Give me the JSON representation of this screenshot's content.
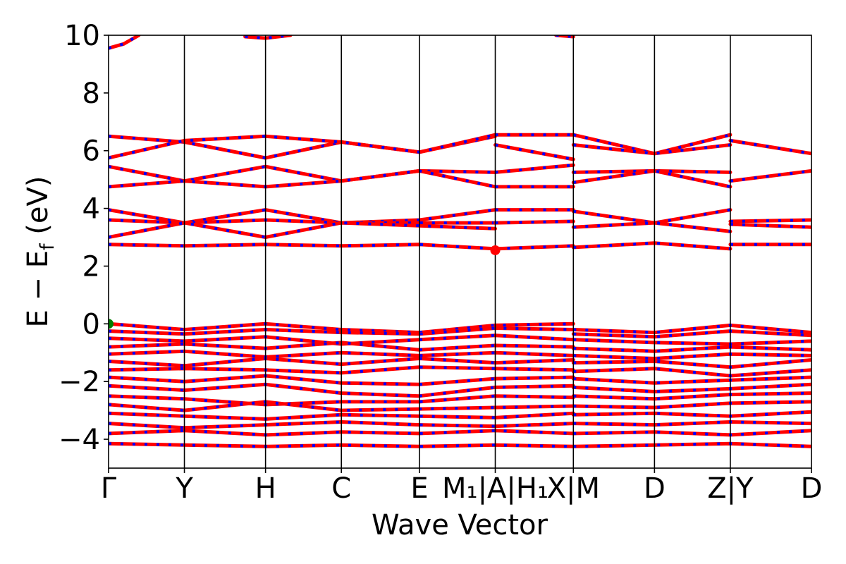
{
  "chart_data": {
    "type": "line",
    "xlabel": "Wave Vector",
    "ylabel": "E − E",
    "ylabel_sub": "f",
    "ylabel_unit": " (eV)",
    "ylim": [
      -5,
      10
    ],
    "yticks": [
      -4,
      -2,
      0,
      2,
      4,
      6,
      8,
      10
    ],
    "ytick_labels": [
      "−4",
      "−2",
      "0",
      "2",
      "4",
      "6",
      "8",
      "10"
    ],
    "xlim": [
      0,
      9.27
    ],
    "kpoints": [
      {
        "x": 0.0,
        "label": "Γ"
      },
      {
        "x": 1.0,
        "label": "Y"
      },
      {
        "x": 2.07,
        "label": "H"
      },
      {
        "x": 3.07,
        "label": "C"
      },
      {
        "x": 4.1,
        "label": "E"
      },
      {
        "x": 5.1,
        "label": "M₁|A|H₁"
      },
      {
        "x": 6.13,
        "label": "X|M"
      },
      {
        "x": 7.2,
        "label": "D"
      },
      {
        "x": 8.2,
        "label": "Z|Y"
      },
      {
        "x": 9.27,
        "label": "D"
      }
    ],
    "discontinuities": [
      5.1,
      6.13,
      8.2
    ],
    "colors": {
      "band_up": "#ff0000",
      "band_down": "#0000ff",
      "vbm_marker": "#008000",
      "cbm_marker": "#ff0000",
      "kpath_line": "#000000"
    },
    "vbm": {
      "x": 0.0,
      "y": 0.0
    },
    "cbm": {
      "x": 5.1,
      "y": 2.55
    },
    "conduction_top_bands": [
      {
        "name": "",
        "x": [
          0.0,
          0.2,
          0.4
        ],
        "y": [
          9.55,
          9.7,
          10.0
        ]
      },
      {
        "name": "",
        "x": [
          1.8,
          2.07,
          2.4
        ],
        "y": [
          9.95,
          9.9,
          10.0
        ]
      },
      {
        "name": "",
        "x": [
          5.9,
          6.13
        ],
        "y": [
          10.0,
          9.95
        ]
      }
    ],
    "bands": [
      {
        "x": [
          0.0,
          1.0,
          2.07,
          3.07,
          4.1,
          5.1
        ],
        "y": [
          6.5,
          6.3,
          5.75,
          6.3,
          5.95,
          6.5
        ]
      },
      {
        "x": [
          0.0,
          1.0,
          2.07,
          3.07,
          4.1,
          5.1
        ],
        "y": [
          5.75,
          6.35,
          6.5,
          6.3,
          5.95,
          6.55
        ]
      },
      {
        "x": [
          0.0,
          1.0,
          2.07,
          3.07,
          4.1,
          5.1
        ],
        "y": [
          5.45,
          4.95,
          5.45,
          4.95,
          5.3,
          5.25
        ]
      },
      {
        "x": [
          0.0,
          1.0,
          2.07,
          3.07,
          4.1,
          5.1
        ],
        "y": [
          4.75,
          4.95,
          4.75,
          4.95,
          5.3,
          4.75
        ]
      },
      {
        "x": [
          0.0,
          1.0,
          2.07,
          3.07,
          4.1,
          5.1
        ],
        "y": [
          3.95,
          3.5,
          3.95,
          3.5,
          3.6,
          3.95
        ]
      },
      {
        "x": [
          0.0,
          1.0,
          2.07,
          3.07,
          4.1,
          5.1
        ],
        "y": [
          3.6,
          3.5,
          3.6,
          3.5,
          3.5,
          3.5
        ]
      },
      {
        "x": [
          0.0,
          1.0,
          2.07,
          3.07,
          4.1,
          5.1
        ],
        "y": [
          3.0,
          3.5,
          3.0,
          3.5,
          3.4,
          3.3
        ]
      },
      {
        "x": [
          0.0,
          1.0,
          2.07,
          3.07,
          4.1,
          5.1
        ],
        "y": [
          2.75,
          2.7,
          2.75,
          2.7,
          2.75,
          2.6
        ]
      },
      {
        "x": [
          5.1,
          6.13
        ],
        "y": [
          6.55,
          6.55
        ]
      },
      {
        "x": [
          5.1,
          6.13
        ],
        "y": [
          6.2,
          5.7
        ]
      },
      {
        "x": [
          5.1,
          6.13
        ],
        "y": [
          5.25,
          5.5
        ]
      },
      {
        "x": [
          5.1,
          6.13
        ],
        "y": [
          4.75,
          4.75
        ]
      },
      {
        "x": [
          5.1,
          6.13
        ],
        "y": [
          3.95,
          3.95
        ]
      },
      {
        "x": [
          5.1,
          6.13
        ],
        "y": [
          3.5,
          3.55
        ]
      },
      {
        "x": [
          5.1,
          6.13
        ],
        "y": [
          2.6,
          2.7
        ]
      },
      {
        "x": [
          6.13,
          7.2,
          8.2
        ],
        "y": [
          6.55,
          5.9,
          6.55
        ]
      },
      {
        "x": [
          6.13,
          7.2,
          8.2
        ],
        "y": [
          6.2,
          5.9,
          6.2
        ]
      },
      {
        "x": [
          6.13,
          7.2,
          8.2
        ],
        "y": [
          5.25,
          5.3,
          5.25
        ]
      },
      {
        "x": [
          6.13,
          7.2,
          8.2
        ],
        "y": [
          4.9,
          5.3,
          4.75
        ]
      },
      {
        "x": [
          6.13,
          7.2,
          8.2
        ],
        "y": [
          3.9,
          3.5,
          3.95
        ]
      },
      {
        "x": [
          6.13,
          7.2,
          8.2
        ],
        "y": [
          3.35,
          3.5,
          3.2
        ]
      },
      {
        "x": [
          6.13,
          7.2,
          8.2
        ],
        "y": [
          2.65,
          2.8,
          2.6
        ]
      },
      {
        "x": [
          8.2,
          9.27
        ],
        "y": [
          6.35,
          5.9
        ]
      },
      {
        "x": [
          8.2,
          9.27
        ],
        "y": [
          4.95,
          5.3
        ]
      },
      {
        "x": [
          8.2,
          9.27
        ],
        "y": [
          3.55,
          3.6
        ]
      },
      {
        "x": [
          8.2,
          9.27
        ],
        "y": [
          3.45,
          3.35
        ]
      },
      {
        "x": [
          8.2,
          9.27
        ],
        "y": [
          2.75,
          2.75
        ]
      },
      {
        "x": [
          0.0,
          1.0,
          2.07,
          3.07,
          4.1,
          5.1,
          6.13
        ],
        "y": [
          0.0,
          -0.2,
          0.0,
          -0.2,
          -0.3,
          -0.05,
          0.0
        ]
      },
      {
        "x": [
          0.0,
          1.0,
          2.07,
          3.07,
          4.1,
          5.1,
          6.13
        ],
        "y": [
          -0.25,
          -0.35,
          -0.2,
          -0.3,
          -0.35,
          -0.15,
          -0.2
        ]
      },
      {
        "x": [
          6.13,
          7.2,
          8.2,
          9.27
        ],
        "y": [
          -0.2,
          -0.3,
          -0.05,
          -0.3
        ]
      },
      {
        "x": [
          6.13,
          7.2,
          8.2,
          9.27
        ],
        "y": [
          -0.35,
          -0.45,
          -0.25,
          -0.4
        ]
      },
      {
        "x": [
          0.0,
          1.0,
          2.07,
          3.07,
          4.1,
          5.1,
          6.13
        ],
        "y": [
          -0.5,
          -0.6,
          -0.45,
          -0.7,
          -0.55,
          -0.4,
          -0.55
        ]
      },
      {
        "x": [
          0.0,
          1.0,
          2.07,
          3.07,
          4.1,
          5.1,
          6.13
        ],
        "y": [
          -0.8,
          -0.7,
          -0.85,
          -0.65,
          -0.9,
          -0.75,
          -0.8
        ]
      },
      {
        "x": [
          0.0,
          1.0,
          2.07,
          3.07,
          4.1,
          5.1,
          6.13
        ],
        "y": [
          -1.05,
          -0.95,
          -1.15,
          -1.0,
          -1.1,
          -1.0,
          -1.1
        ]
      },
      {
        "x": [
          0.0,
          1.0,
          2.07,
          3.07,
          4.1,
          5.1,
          6.13
        ],
        "y": [
          -1.3,
          -1.45,
          -1.2,
          -1.4,
          -1.2,
          -1.35,
          -1.25
        ]
      },
      {
        "x": [
          0.0,
          1.0,
          2.07,
          3.07,
          4.1,
          5.1,
          6.13
        ],
        "y": [
          -1.6,
          -1.55,
          -1.6,
          -1.7,
          -1.5,
          -1.55,
          -1.6
        ]
      },
      {
        "x": [
          0.0,
          1.0,
          2.07,
          3.07,
          4.1,
          5.1,
          6.13
        ],
        "y": [
          -1.85,
          -2.0,
          -1.8,
          -2.05,
          -2.1,
          -1.9,
          -1.85
        ]
      },
      {
        "x": [
          0.0,
          1.0,
          2.07,
          3.07,
          4.1,
          5.1,
          6.13
        ],
        "y": [
          -2.15,
          -2.3,
          -2.1,
          -2.4,
          -2.5,
          -2.2,
          -2.15
        ]
      },
      {
        "x": [
          0.0,
          1.0,
          2.07,
          3.07,
          4.1,
          5.1,
          6.13
        ],
        "y": [
          -2.5,
          -2.6,
          -2.8,
          -2.7,
          -2.7,
          -2.5,
          -2.55
        ]
      },
      {
        "x": [
          0.0,
          1.0,
          2.07,
          3.07,
          4.1,
          5.1,
          6.13
        ],
        "y": [
          -2.8,
          -3.0,
          -2.7,
          -3.0,
          -2.95,
          -2.9,
          -2.85
        ]
      },
      {
        "x": [
          0.0,
          1.0,
          2.07,
          3.07,
          4.1,
          5.1,
          6.13
        ],
        "y": [
          -3.1,
          -3.2,
          -3.3,
          -3.15,
          -3.2,
          -3.25,
          -3.1
        ]
      },
      {
        "x": [
          0.0,
          1.0,
          2.07,
          3.07,
          4.1,
          5.1,
          6.13
        ],
        "y": [
          -3.45,
          -3.6,
          -3.5,
          -3.4,
          -3.5,
          -3.55,
          -3.45
        ]
      },
      {
        "x": [
          0.0,
          1.0,
          2.07,
          3.07,
          4.1,
          5.1,
          6.13
        ],
        "y": [
          -3.8,
          -3.7,
          -3.85,
          -3.75,
          -3.8,
          -3.7,
          -3.8
        ]
      },
      {
        "x": [
          0.0,
          1.0,
          2.07,
          3.07,
          4.1,
          5.1,
          6.13
        ],
        "y": [
          -4.15,
          -4.2,
          -4.25,
          -4.2,
          -4.25,
          -4.2,
          -4.25
        ]
      },
      {
        "x": [
          6.13,
          7.2,
          8.2,
          9.27
        ],
        "y": [
          -0.55,
          -0.65,
          -0.7,
          -0.6
        ]
      },
      {
        "x": [
          6.13,
          7.2,
          8.2,
          9.27
        ],
        "y": [
          -0.85,
          -0.95,
          -0.8,
          -0.9
        ]
      },
      {
        "x": [
          6.13,
          7.2,
          8.2,
          9.27
        ],
        "y": [
          -1.1,
          -1.2,
          -1.05,
          -1.1
        ]
      },
      {
        "x": [
          6.13,
          7.2,
          8.2,
          9.27
        ],
        "y": [
          -1.35,
          -1.3,
          -1.5,
          -1.25
        ]
      },
      {
        "x": [
          6.13,
          7.2,
          8.2,
          9.27
        ],
        "y": [
          -1.65,
          -1.55,
          -1.8,
          -1.6
        ]
      },
      {
        "x": [
          6.13,
          7.2,
          8.2,
          9.27
        ],
        "y": [
          -1.9,
          -2.05,
          -1.95,
          -1.85
        ]
      },
      {
        "x": [
          6.13,
          7.2,
          8.2,
          9.27
        ],
        "y": [
          -2.2,
          -2.35,
          -2.25,
          -2.1
        ]
      },
      {
        "x": [
          6.13,
          7.2,
          8.2,
          9.27
        ],
        "y": [
          -2.5,
          -2.6,
          -2.45,
          -2.4
        ]
      },
      {
        "x": [
          6.13,
          7.2,
          8.2,
          9.27
        ],
        "y": [
          -2.85,
          -2.9,
          -2.75,
          -2.7
        ]
      },
      {
        "x": [
          6.13,
          7.2,
          8.2,
          9.27
        ],
        "y": [
          -3.15,
          -3.1,
          -3.2,
          -3.05
        ]
      },
      {
        "x": [
          6.13,
          7.2,
          8.2,
          9.27
        ],
        "y": [
          -3.45,
          -3.5,
          -3.4,
          -3.45
        ]
      },
      {
        "x": [
          6.13,
          7.2,
          8.2,
          9.27
        ],
        "y": [
          -3.8,
          -3.75,
          -3.85,
          -3.7
        ]
      },
      {
        "x": [
          6.13,
          7.2,
          8.2,
          9.27
        ],
        "y": [
          -4.25,
          -4.2,
          -4.15,
          -4.25
        ]
      }
    ]
  }
}
